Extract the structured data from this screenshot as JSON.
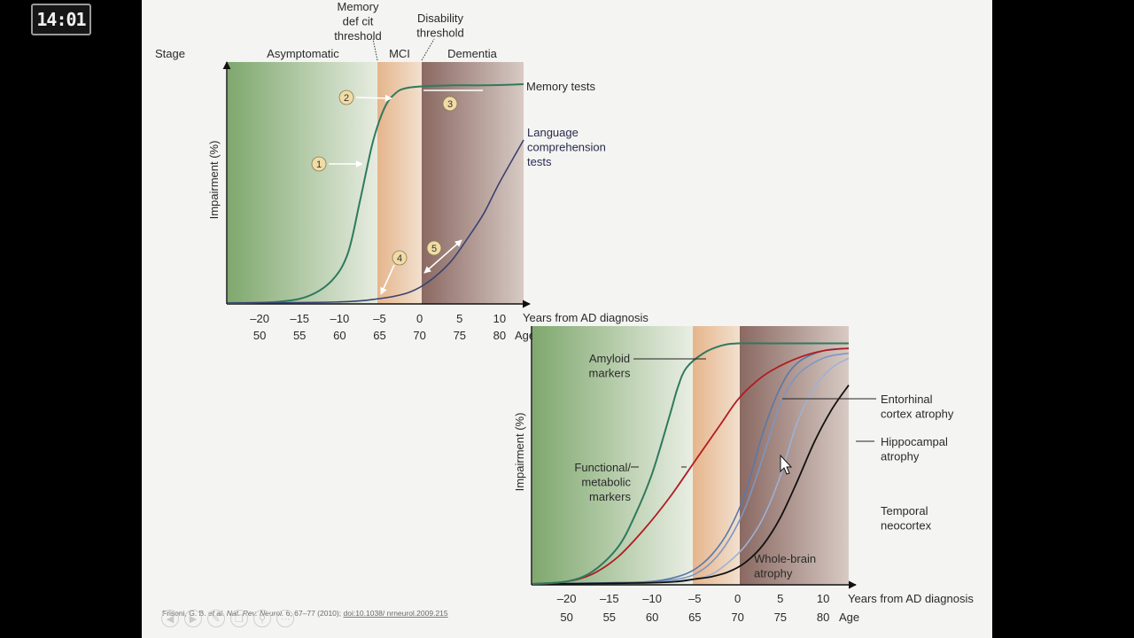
{
  "clock": "14:01",
  "citation": {
    "prefix": "Frisoni, G. B.",
    "etal": "et al.",
    "journal": "Nat. Rev. Neurol.",
    "rest": "6, 67–77 (2010);",
    "doi": "doi:10.1038/ nrneurol.2009.215"
  },
  "toolbar_icons": [
    "back-icon",
    "forward-icon",
    "pen-icon",
    "copy-icon",
    "zoom-icon",
    "more-icon"
  ],
  "colors": {
    "asymptomatic": "#7fa86e",
    "mci": "#e8bf9a",
    "dementia": "#8e6e66",
    "memory_curve": "#2f7a5e",
    "language_curve": "#3a4270",
    "functional_curve": "#b01c22",
    "atrophy_curves": "#7d96c4",
    "whole_brain": "#111111"
  },
  "chart_data": [
    {
      "type": "line",
      "stage_label": "Stage",
      "stages": [
        "Asymptomatic",
        "MCI",
        "Dementia"
      ],
      "thresholds": [
        "Memory\ndef cit\nthreshold",
        "Disability\nthreshold"
      ],
      "ylabel": "Impairment (%)",
      "xlabel": "Years from AD diagnosis",
      "age_label": "Age",
      "x_ticks": [
        "–20",
        "–15",
        "–10",
        "–5",
        "0",
        "5",
        "10"
      ],
      "age_ticks": [
        "50",
        "55",
        "60",
        "65",
        "70",
        "75",
        "80"
      ],
      "x_range": [
        -24,
        13
      ],
      "y_range": [
        0,
        100
      ],
      "series": [
        {
          "name": "Memory tests",
          "x": [
            -24,
            -18,
            -14,
            -11,
            -9,
            -7.5,
            -6,
            -5,
            -4,
            -3,
            -2,
            0,
            4,
            8,
            13
          ],
          "y": [
            0,
            0.5,
            3,
            10,
            22,
            45,
            70,
            82,
            90,
            94,
            96,
            97,
            97.5,
            97.5,
            98
          ]
        },
        {
          "name": "Language\ncomprehension\ntests",
          "x": [
            -24,
            -10,
            -5,
            -2,
            0,
            2,
            4,
            6,
            8,
            10,
            13
          ],
          "y": [
            0,
            0.5,
            2,
            4,
            7,
            12,
            19,
            29,
            40,
            54,
            73
          ]
        }
      ],
      "markers": [
        "1",
        "2",
        "3",
        "4",
        "5"
      ]
    },
    {
      "type": "line",
      "ylabel": "Impairment (%)",
      "xlabel": "Years from AD diagnosis",
      "age_label": "Age",
      "x_ticks": [
        "–20",
        "–15",
        "–10",
        "–5",
        "0",
        "5",
        "10"
      ],
      "age_ticks": [
        "50",
        "55",
        "60",
        "65",
        "70",
        "75",
        "80"
      ],
      "x_range": [
        -24,
        13
      ],
      "y_range": [
        0,
        100
      ],
      "series": [
        {
          "name": "Amyloid\nmarkers",
          "x": [
            -24,
            -20,
            -17,
            -14,
            -12,
            -10,
            -8,
            -7,
            -6,
            -4,
            -2,
            0,
            4,
            13
          ],
          "y": [
            0,
            1,
            5,
            15,
            28,
            45,
            68,
            80,
            88,
            94,
            97,
            98,
            98,
            98
          ]
        },
        {
          "name": "Functional/\nmetabolic\nmarkers",
          "x": [
            -24,
            -20,
            -17,
            -14,
            -11,
            -8,
            -5,
            -2,
            0,
            2,
            4,
            7,
            10,
            13
          ],
          "y": [
            0,
            1,
            4,
            11,
            22,
            35,
            50,
            65,
            75,
            82,
            87,
            92,
            95,
            96
          ]
        },
        {
          "name": "Entorhinal\ncortex atrophy",
          "x": [
            -24,
            -14,
            -10,
            -7,
            -5,
            -3,
            -1,
            1,
            3,
            5,
            7,
            10,
            13
          ],
          "y": [
            0,
            0.5,
            1,
            3,
            6,
            12,
            22,
            38,
            62,
            80,
            90,
            95,
            96
          ]
        },
        {
          "name": "Hippocampal\natrophy",
          "x": [
            -24,
            -14,
            -10,
            -7,
            -5,
            -3,
            -1,
            1,
            3,
            5,
            7,
            10,
            13
          ],
          "y": [
            0,
            0.5,
            1,
            2,
            4,
            9,
            18,
            32,
            52,
            73,
            85,
            92,
            94
          ]
        },
        {
          "name": "Temporal\nneocortex",
          "x": [
            -24,
            -12,
            -8,
            -5,
            -3,
            -1,
            1,
            3,
            5,
            7,
            9,
            11,
            13
          ],
          "y": [
            0,
            0.5,
            1,
            2,
            4,
            9,
            16,
            27,
            44,
            66,
            80,
            88,
            92
          ]
        },
        {
          "name": "Whole-brain\natrophy",
          "x": [
            -24,
            -14,
            -10,
            -7,
            -5,
            -3,
            -1,
            1,
            3,
            5,
            7,
            9,
            11,
            13
          ],
          "y": [
            0,
            0.3,
            0.5,
            1,
            2,
            3,
            5,
            9,
            16,
            27,
            42,
            58,
            71,
            81
          ]
        }
      ]
    }
  ]
}
